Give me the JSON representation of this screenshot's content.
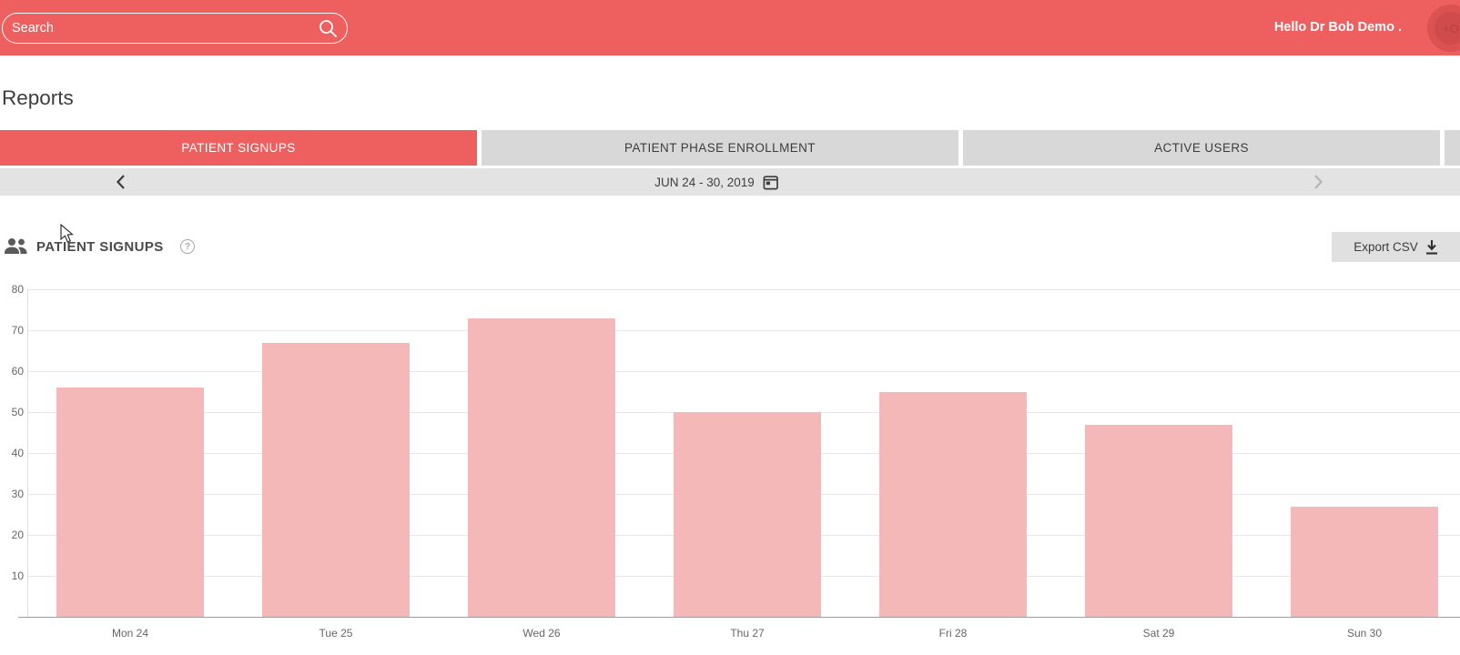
{
  "header": {
    "search_placeholder": "Search",
    "greeting": "Hello Dr Bob Demo .",
    "avatar_hint": "+O"
  },
  "page": {
    "title": "Reports"
  },
  "tabs": [
    {
      "label": "PATIENT SIGNUPS",
      "active": true
    },
    {
      "label": "PATIENT PHASE ENROLLMENT",
      "active": false
    },
    {
      "label": "ACTIVE USERS",
      "active": false
    }
  ],
  "date_nav": {
    "range_label": "JUN 24 - 30, 2019",
    "prev_enabled": true,
    "next_enabled": false
  },
  "section": {
    "title": "PATIENT SIGNUPS",
    "export_label": "Export CSV"
  },
  "icons": {
    "search": "magnifier-icon",
    "calendar": "calendar-icon",
    "prev": "chevron-left-icon",
    "next": "chevron-right-icon",
    "people": "people-icon",
    "help": "question-circle-icon",
    "download": "download-icon",
    "cursor": "mouse-pointer-icon"
  },
  "colors": {
    "accent": "#ee5f5f",
    "tab_inactive_bg": "#d8d8d8",
    "datebar_bg": "#e3e3e3",
    "export_bg": "#e0e0e0",
    "bar_fill": "#f5b8b8",
    "gridline": "#e7e7e7",
    "axis_text": "#666666"
  },
  "chart_data": {
    "type": "bar",
    "title": "PATIENT SIGNUPS",
    "categories": [
      "Mon 24",
      "Tue 25",
      "Wed 26",
      "Thu 27",
      "Fri 28",
      "Sat 29",
      "Sun 30"
    ],
    "values": [
      56,
      67,
      73,
      50,
      55,
      47,
      27
    ],
    "xlabel": "",
    "ylabel": "",
    "ylim": [
      0,
      80
    ],
    "ytick_interval": 10,
    "bar_color": "#f5b8b8",
    "grid": true,
    "legend": false
  }
}
